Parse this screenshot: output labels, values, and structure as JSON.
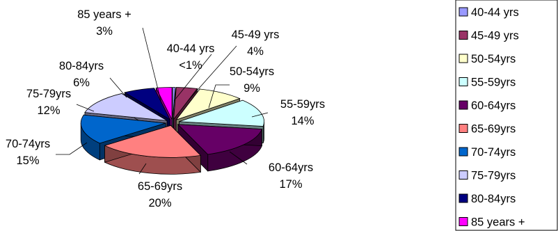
{
  "chart_data": {
    "type": "pie",
    "style": "3d-exploded",
    "categories": [
      "40-44 yrs",
      "45-49 yrs",
      "50-54yrs",
      "55-59yrs",
      "60-64yrs",
      "65-69yrs",
      "70-74yrs",
      "75-79yrs",
      "80-84yrs",
      "85 years +"
    ],
    "values": [
      0.5,
      4,
      9,
      14,
      17,
      20,
      15,
      12,
      6,
      3
    ],
    "data_labels": [
      {
        "name": "40-44 yrs",
        "pct": "<1%"
      },
      {
        "name": "45-49 yrs",
        "pct": "4%"
      },
      {
        "name": "50-54yrs",
        "pct": "9%"
      },
      {
        "name": "55-59yrs",
        "pct": "14%"
      },
      {
        "name": "60-64yrs",
        "pct": "17%"
      },
      {
        "name": "65-69yrs",
        "pct": "20%"
      },
      {
        "name": "70-74yrs",
        "pct": "15%"
      },
      {
        "name": "75-79yrs",
        "pct": "12%"
      },
      {
        "name": "80-84yrs",
        "pct": "6%"
      },
      {
        "name": "85 years +",
        "pct": "3%"
      }
    ],
    "colors": [
      "#9999FF",
      "#993366",
      "#FFFFCC",
      "#CCFFFF",
      "#660066",
      "#FF8080",
      "#0066CC",
      "#CCCCFF",
      "#000080",
      "#FF00FF"
    ],
    "legend": {
      "position": "right",
      "entries": [
        "40-44 yrs",
        "45-49 yrs",
        "50-54yrs",
        "55-59yrs",
        "60-64yrs",
        "65-69yrs",
        "70-74yrs",
        "75-79yrs",
        "80-84yrs",
        "85 years +"
      ]
    }
  }
}
